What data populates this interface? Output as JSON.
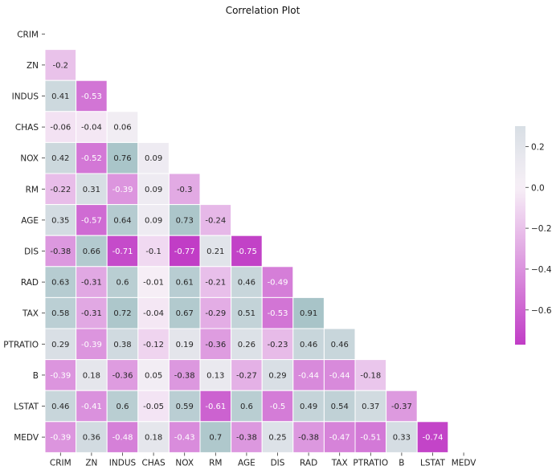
{
  "chart_data": {
    "type": "heatmap",
    "title": "Correlation Plot",
    "variables": [
      "CRIM",
      "ZN",
      "INDUS",
      "CHAS",
      "NOX",
      "RM",
      "AGE",
      "DIS",
      "RAD",
      "TAX",
      "PTRATIO",
      "B",
      "LSTAT",
      "MEDV"
    ],
    "mask": "upper-triangle-including-diagonal",
    "lower_triangle_values": [
      [],
      [
        -0.2
      ],
      [
        0.41,
        -0.53
      ],
      [
        -0.06,
        -0.04,
        0.06
      ],
      [
        0.42,
        -0.52,
        0.76,
        0.09
      ],
      [
        -0.22,
        0.31,
        -0.39,
        0.09,
        -0.3
      ],
      [
        0.35,
        -0.57,
        0.64,
        0.09,
        0.73,
        -0.24
      ],
      [
        -0.38,
        0.66,
        -0.71,
        -0.1,
        -0.77,
        0.21,
        -0.75
      ],
      [
        0.63,
        -0.31,
        0.6,
        -0.01,
        0.61,
        -0.21,
        0.46,
        -0.49
      ],
      [
        0.58,
        -0.31,
        0.72,
        -0.04,
        0.67,
        -0.29,
        0.51,
        -0.53,
        0.91
      ],
      [
        0.29,
        -0.39,
        0.38,
        -0.12,
        0.19,
        -0.36,
        0.26,
        -0.23,
        0.46,
        0.46
      ],
      [
        -0.39,
        0.18,
        -0.36,
        0.05,
        -0.38,
        0.13,
        -0.27,
        0.29,
        -0.44,
        -0.44,
        -0.18
      ],
      [
        0.46,
        -0.41,
        0.6,
        -0.05,
        0.59,
        -0.61,
        0.6,
        -0.5,
        0.49,
        0.54,
        0.37,
        -0.37
      ],
      [
        -0.39,
        0.36,
        -0.48,
        0.18,
        -0.43,
        0.7,
        -0.38,
        0.25,
        -0.38,
        -0.47,
        -0.51,
        0.33,
        -0.74
      ]
    ],
    "color_range": [
      -0.77,
      0.3
    ],
    "center": 0,
    "colors": {
      "negative": "#c13dc6",
      "neutral": "#f7f0f7",
      "positive": "#a8c4c8"
    },
    "colorbar": {
      "ticks": [
        0.2,
        0.0,
        -0.2,
        -0.4,
        -0.6
      ],
      "tick_labels": [
        "0.2",
        "0.0",
        "−0.2",
        "−0.4",
        "−0.6"
      ]
    }
  }
}
